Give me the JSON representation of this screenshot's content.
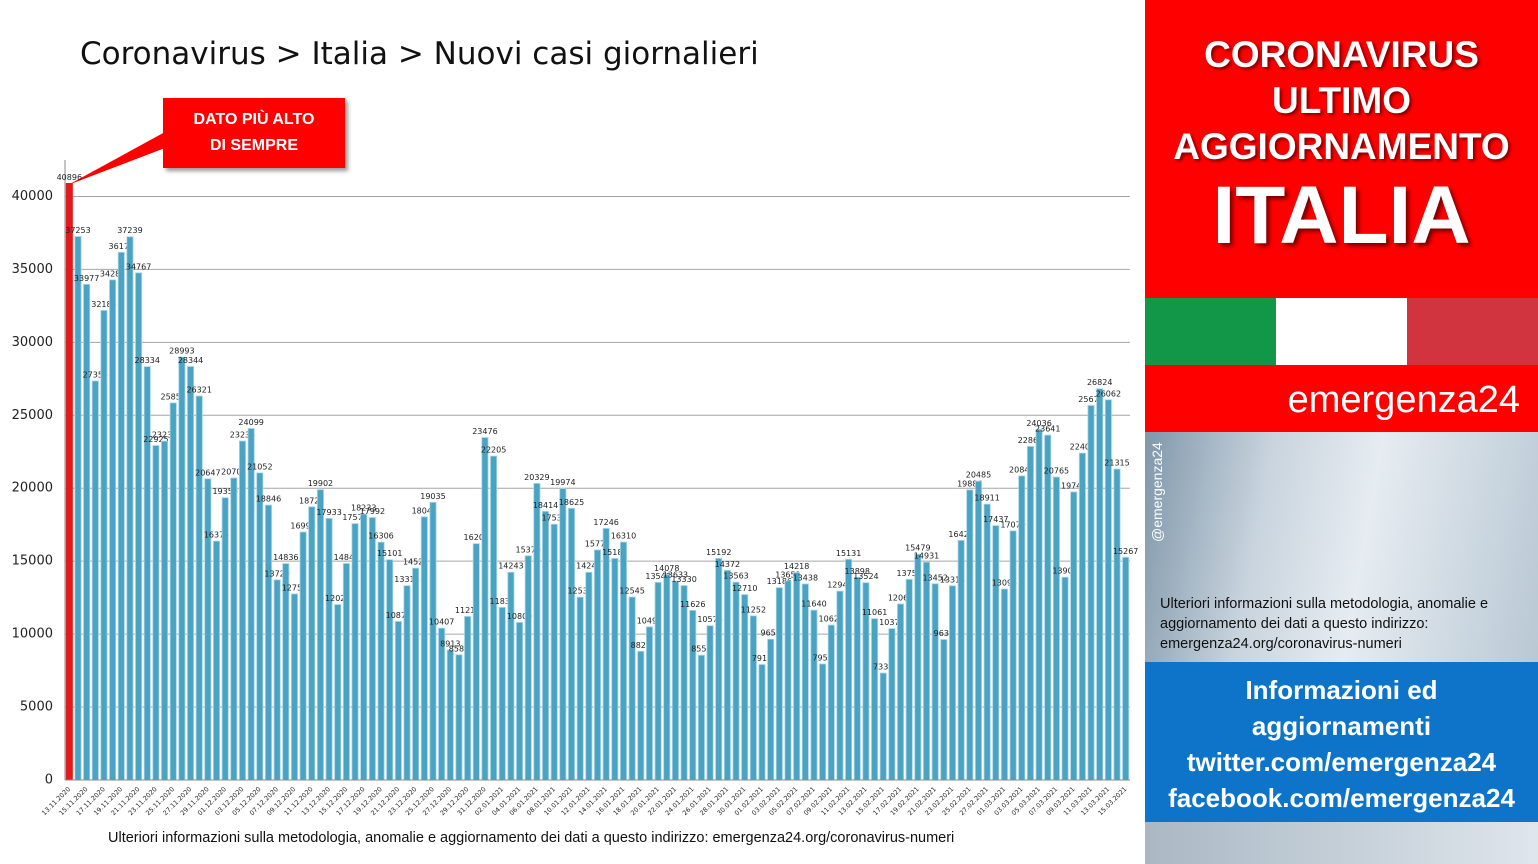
{
  "chart_data": {
    "type": "bar",
    "title": "Coronavirus > Italia > Nuovi casi giornalieri",
    "annotation": [
      "DATO PIÙ ALTO",
      "DI SEMPRE"
    ],
    "footnote": "Ulteriori informazioni sulla metodologia, anomalie e aggiornamento dei dati a questo indirizzo: emergenza24.org/coronavirus-numeri",
    "color": "#4ba3c3",
    "max_color": "#e31a1c",
    "grid": true,
    "ylim": [
      0,
      42500
    ],
    "yticks": [
      0,
      5000,
      10000,
      15000,
      20000,
      25000,
      30000,
      35000,
      40000
    ],
    "categories": [
      "13.11.2020",
      null,
      "15.11.2020",
      null,
      "17.11.2020",
      null,
      "19.11.2020",
      null,
      "21.11.2020",
      null,
      "23.11.2020",
      null,
      "25.11.2020",
      null,
      "27.11.2020",
      null,
      "29.11.2020",
      null,
      "01.12.2020",
      null,
      "03.12.2020",
      null,
      "05.12.2020",
      null,
      "07.12.2020",
      null,
      "09.12.2020",
      null,
      "11.12.2020",
      null,
      "13.12.2020",
      null,
      "15.12.2020",
      null,
      "17.12.2020",
      null,
      "19.12.2020",
      null,
      "21.12.2020",
      null,
      "23.12.2020",
      null,
      "25.12.2020",
      null,
      "27.12.2020",
      null,
      "29.12.2020",
      null,
      "31.12.2020",
      null,
      "02.01.2021",
      null,
      "04.01.2021",
      null,
      "06.01.2021",
      null,
      "08.01.2021",
      null,
      "10.01.2021",
      null,
      "12.01.2021",
      null,
      "14.01.2021",
      null,
      "16.01.2021",
      null,
      "18.01.2021",
      null,
      "20.01.2021",
      null,
      "22.01.2021",
      null,
      "24.01.2021",
      null,
      "26.01.2021",
      null,
      "28.01.2021",
      null,
      "30.01.2021",
      null,
      "01.02.2021",
      null,
      "03.02.2021",
      null,
      "05.02.2021",
      null,
      "07.02.2021",
      null,
      "09.02.2021",
      null,
      "11.02.2021",
      null,
      "13.02.2021",
      null,
      "15.02.2021",
      null,
      "17.02.2021",
      null,
      "19.02.2021",
      null,
      "21.02.2021",
      null,
      "23.02.2021",
      null,
      "25.02.2021",
      null,
      "27.02.2021",
      null,
      "01.03.2021",
      null,
      "03.03.2021",
      null,
      "05.03.2021",
      null,
      "07.03.2021",
      null,
      "09.03.2021",
      null,
      "11.03.2021",
      null,
      "13.03.2021",
      null,
      "15.03.2021"
    ],
    "values": [
      40896,
      37253,
      33977,
      27354,
      32188,
      34283,
      36173,
      37239,
      34767,
      28334,
      22925,
      23231,
      25851,
      28993,
      28344,
      26321,
      20647,
      16374,
      19350,
      20703,
      23236,
      24099,
      21052,
      18846,
      13720,
      14836,
      12755,
      16998,
      18726,
      19902,
      17933,
      12025,
      14840,
      17572,
      18233,
      17992,
      16306,
      15101,
      10870,
      13318,
      14522,
      18040,
      19035,
      10407,
      8913,
      8583,
      11212,
      16202,
      23476,
      22205,
      11831,
      14243,
      10800,
      15370,
      20329,
      18414,
      17533,
      19974,
      18625,
      12532,
      14241,
      15771,
      17246,
      15187,
      16310,
      12545,
      8824,
      10497,
      13548,
      14078,
      13633,
      13330,
      11626,
      8555,
      10578,
      15192,
      14372,
      13563,
      12710,
      11252,
      7916,
      9653,
      13186,
      13651,
      14218,
      13438,
      11640,
      7952,
      10621,
      12947,
      15131,
      13898,
      13524,
      11061,
      7333,
      10378,
      12067,
      13753,
      15479,
      14931,
      13452,
      9630,
      13314,
      16424,
      19886,
      20485,
      18911,
      17437,
      13094,
      17079,
      20844,
      22865,
      24036,
      23641,
      20765,
      13902,
      19749,
      22409,
      25673,
      26824,
      26062,
      21315,
      15267
    ]
  },
  "sidebar": {
    "header": [
      "CORONAVIRUS",
      "ULTIMO",
      "AGGIORNAMENTO"
    ],
    "country": "ITALIA",
    "brand": "emergenza24",
    "handle": "@emergenza24",
    "info": "Ulteriori informazioni sulla metodologia, anomalie e aggiornamento dei dati a questo indirizzo: emergenza24.org/coronavirus-numeri",
    "links": [
      "Informazioni ed",
      "aggiornamenti",
      "twitter.com/emergenza24",
      "facebook.com/emergenza24"
    ]
  }
}
